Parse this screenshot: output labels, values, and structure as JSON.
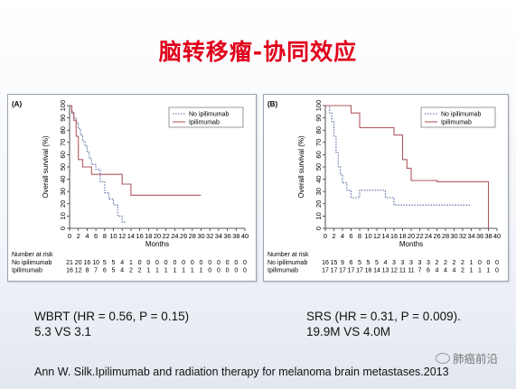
{
  "slide": {
    "title": "脑转移瘤-协同效应",
    "captions": {
      "a_line1": "WBRT (HR = 0.56, P = 0.15)",
      "a_line2": "5.3 VS 3.1",
      "b_line1": "SRS (HR = 0.31, P = 0.009).",
      "b_line2": "19.9M VS  4.0M"
    },
    "citation": "Ann W. Silk.Ipilimumab  and radiation therapy for melanoma  brain metastases.2013",
    "watermark": "肺癌前沿"
  },
  "chart_data": [
    {
      "type": "line",
      "panel_label": "(A)",
      "xlabel": "Months",
      "ylabel": "Overall survival (%)",
      "xlim": [
        0,
        40
      ],
      "ylim": [
        0,
        100
      ],
      "xticks": [
        0,
        2,
        4,
        6,
        8,
        10,
        12,
        14,
        16,
        18,
        20,
        22,
        24,
        26,
        28,
        30,
        32,
        34,
        36,
        38,
        40
      ],
      "yticks": [
        0,
        10,
        20,
        30,
        40,
        50,
        60,
        70,
        80,
        90,
        100
      ],
      "grid": false,
      "legend": "top-right",
      "series": [
        {
          "name": "No ipilimumab",
          "style": "dotted",
          "color": "#5b6fa8",
          "x": [
            0,
            0.5,
            0.5,
            1,
            1,
            1.5,
            1.5,
            2,
            2,
            2.5,
            2.5,
            3,
            3,
            3.5,
            3.5,
            4,
            4,
            4.5,
            4.5,
            5,
            5,
            6,
            6,
            7,
            7,
            8,
            8,
            9,
            9,
            10,
            10,
            11,
            11,
            12,
            12,
            13
          ],
          "y": [
            100,
            100,
            95,
            95,
            90,
            90,
            86,
            86,
            81,
            81,
            76,
            76,
            71,
            71,
            67,
            67,
            62,
            62,
            57,
            57,
            52,
            52,
            48,
            48,
            38,
            38,
            29,
            29,
            24,
            24,
            19,
            19,
            10,
            10,
            5,
            5
          ]
        },
        {
          "name": "Ipilimumab",
          "style": "solid",
          "color": "#b05860",
          "x": [
            0,
            0.5,
            0.5,
            1,
            1,
            1.5,
            1.5,
            2,
            2,
            3,
            3,
            5,
            5,
            6,
            6,
            12,
            12,
            14,
            14,
            30
          ],
          "y": [
            100,
            100,
            94,
            94,
            88,
            88,
            75,
            75,
            56,
            56,
            50,
            50,
            44,
            44,
            44,
            44,
            36,
            36,
            27,
            27
          ]
        }
      ],
      "risk_table": {
        "header": "Number at risk",
        "rows": [
          {
            "label": "No ipilimumab",
            "values": [
              21,
              20,
              16,
              10,
              5,
              5,
              4,
              1,
              0,
              0,
              0,
              0,
              0,
              0,
              0,
              0,
              0,
              0,
              0,
              0,
              0
            ]
          },
          {
            "label": "Ipilimumab",
            "values": [
              16,
              12,
              8,
              7,
              6,
              5,
              4,
              2,
              2,
              1,
              1,
              1,
              1,
              1,
              1,
              1,
              0,
              0,
              0,
              0,
              0
            ]
          }
        ]
      }
    },
    {
      "type": "line",
      "panel_label": "(B)",
      "xlabel": "Months",
      "ylabel": "Overall survival (%)",
      "xlim": [
        0,
        40
      ],
      "ylim": [
        0,
        100
      ],
      "xticks": [
        0,
        2,
        4,
        6,
        8,
        10,
        12,
        14,
        16,
        18,
        20,
        22,
        24,
        26,
        28,
        30,
        32,
        34,
        36,
        38,
        40
      ],
      "yticks": [
        0,
        10,
        20,
        30,
        40,
        50,
        60,
        70,
        80,
        90,
        100
      ],
      "grid": false,
      "legend": "top-right",
      "series": [
        {
          "name": "No ipilimumab",
          "style": "dotted",
          "color": "#5b6fa8",
          "x": [
            0,
            1,
            1,
            1.5,
            1.5,
            2,
            2,
            2.5,
            2.5,
            3,
            3,
            3.5,
            3.5,
            4,
            4,
            5,
            5,
            6,
            6,
            8,
            8,
            14,
            14,
            16,
            16,
            34
          ],
          "y": [
            100,
            100,
            94,
            94,
            87,
            87,
            75,
            75,
            62,
            62,
            50,
            50,
            44,
            44,
            37,
            37,
            31,
            31,
            25,
            25,
            31,
            31,
            25,
            25,
            19,
            19
          ]
        },
        {
          "name": "Ipilimumab",
          "style": "solid",
          "color": "#b05860",
          "x": [
            0,
            6,
            6,
            8,
            8,
            16,
            16,
            18,
            18,
            19,
            19,
            20,
            20,
            26,
            26,
            38,
            38
          ],
          "y": [
            100,
            100,
            94,
            94,
            82,
            82,
            76,
            76,
            56,
            56,
            49,
            49,
            39,
            39,
            38,
            38,
            0
          ]
        }
      ],
      "risk_table": {
        "header": "Number at risk",
        "rows": [
          {
            "label": "No ipilimumab",
            "values": [
              16,
              15,
              9,
              6,
              5,
              5,
              5,
              4,
              3,
              3,
              3,
              3,
              3,
              2,
              2,
              2,
              2,
              1,
              0,
              0,
              0
            ]
          },
          {
            "label": "Ipilimumab",
            "values": [
              17,
              17,
              17,
              17,
              17,
              16,
              14,
              13,
              12,
              11,
              11,
              7,
              6,
              4,
              4,
              4,
              2,
              1,
              1,
              1,
              0
            ]
          }
        ]
      }
    }
  ]
}
